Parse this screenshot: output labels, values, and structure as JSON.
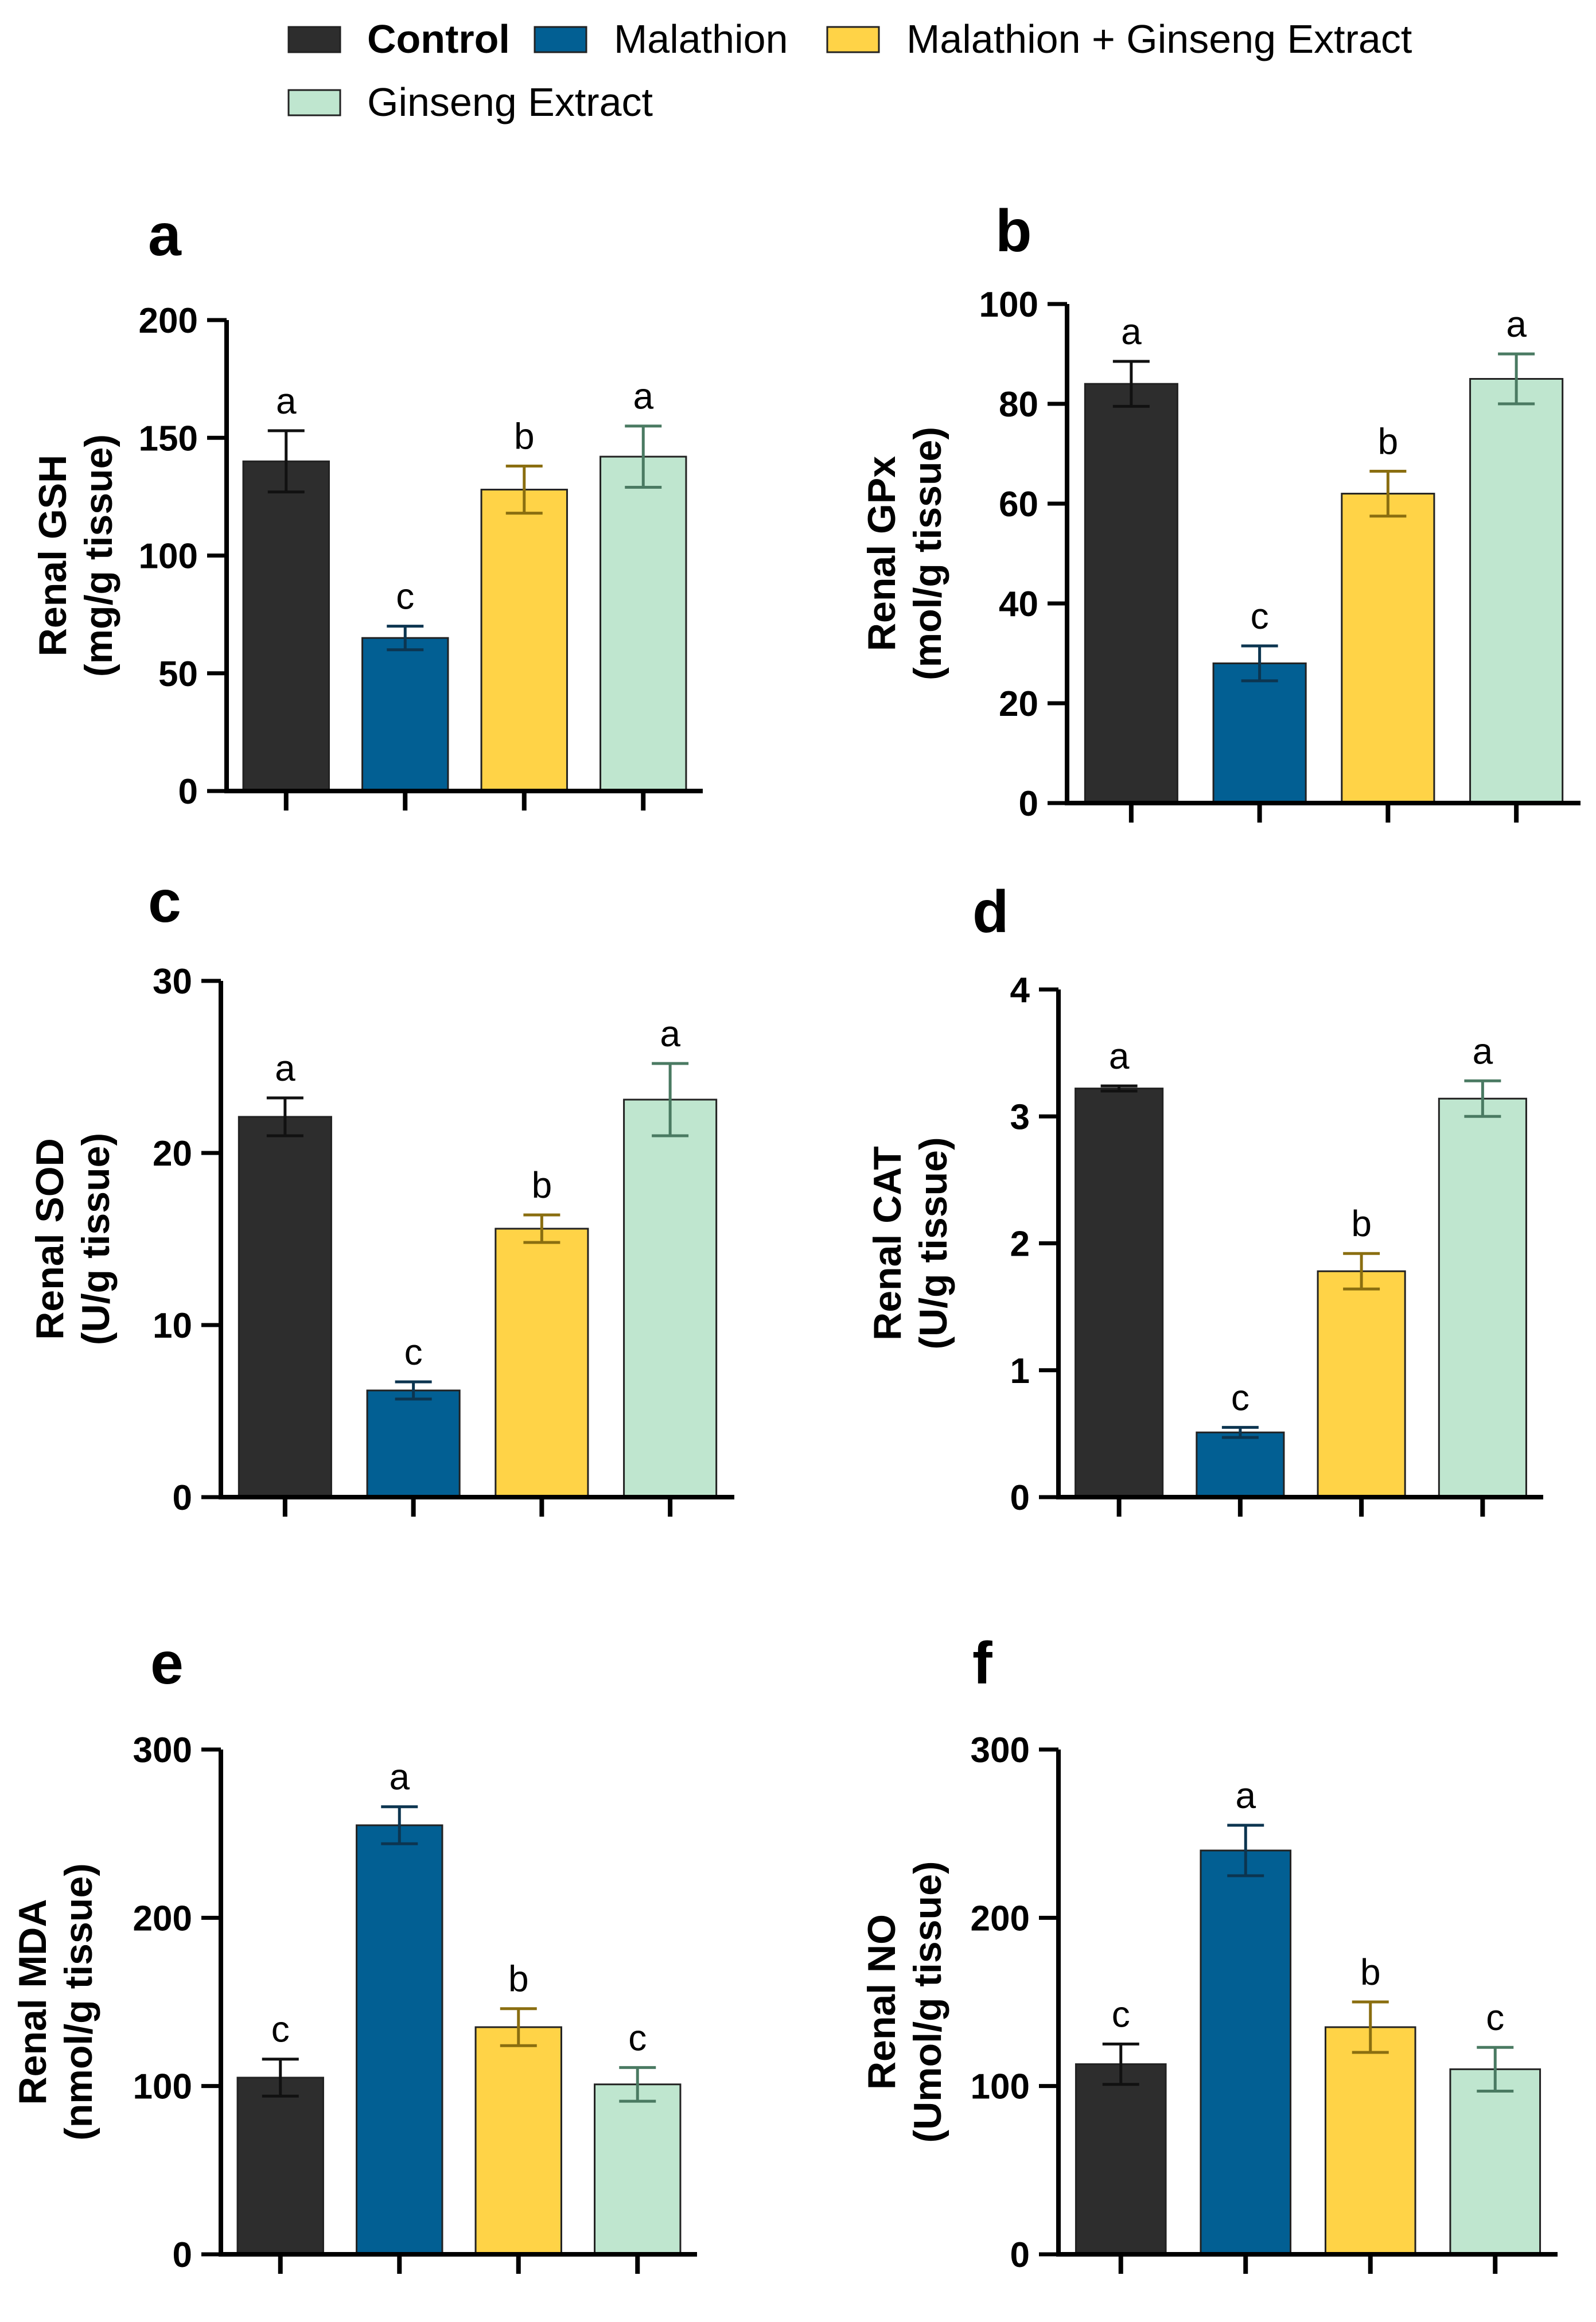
{
  "legend": [
    {
      "label": "Control",
      "color": "#2d2d2d",
      "bold": true
    },
    {
      "label": "Malathion",
      "color": "#025f93"
    },
    {
      "label": "Malathion + Ginseng Extract",
      "color": "#ffd347"
    },
    {
      "label": "Ginseng Extract",
      "color": "#bfe6cf"
    }
  ],
  "colors": {
    "control": "#2d2d2d",
    "malathion": "#025f93",
    "malathion_ginseng": "#ffd347",
    "ginseng": "#bfe6cf",
    "error_bars": [
      "#111111",
      "#0c3550",
      "#8a6e10",
      "#4a7a62"
    ]
  },
  "chart_data": [
    {
      "type": "bar",
      "panel": "a",
      "ylabel_line1": "Renal GSH",
      "ylabel_line2": "(mg/g tissue)",
      "ylim": [
        0,
        200
      ],
      "yticks": [
        0,
        50,
        100,
        150,
        200
      ],
      "values": [
        140,
        65,
        128,
        142
      ],
      "errors": [
        13,
        5,
        10,
        13
      ],
      "sig": [
        "a",
        "c",
        "b",
        "a"
      ]
    },
    {
      "type": "bar",
      "panel": "b",
      "ylabel_line1": "Renal GPx",
      "ylabel_line2": "(mol/g tissue)",
      "ylim": [
        0,
        100
      ],
      "yticks": [
        0,
        20,
        40,
        60,
        80,
        100
      ],
      "values": [
        84,
        28,
        62,
        85
      ],
      "errors": [
        4.5,
        3.5,
        4.5,
        5
      ],
      "sig": [
        "a",
        "c",
        "b",
        "a"
      ]
    },
    {
      "type": "bar",
      "panel": "c",
      "ylabel_line1": "Renal SOD",
      "ylabel_line2": "(U/g tissue)",
      "ylim": [
        0,
        30
      ],
      "yticks": [
        0,
        10,
        20,
        30
      ],
      "values": [
        22.1,
        6.2,
        15.6,
        23.1
      ],
      "errors": [
        1.1,
        0.5,
        0.8,
        2.1
      ],
      "sig": [
        "a",
        "c",
        "b",
        "a"
      ]
    },
    {
      "type": "bar",
      "panel": "d",
      "ylabel_line1": "Renal CAT",
      "ylabel_line2": "(U/g tissue)",
      "ylim": [
        0,
        4
      ],
      "yticks": [
        0,
        1,
        2,
        3,
        4
      ],
      "values": [
        3.22,
        0.51,
        1.78,
        3.14
      ],
      "errors": [
        0.02,
        0.04,
        0.14,
        0.14
      ],
      "sig": [
        "a",
        "c",
        "b",
        "a"
      ]
    },
    {
      "type": "bar",
      "panel": "e",
      "ylabel_line1": "Renal MDA",
      "ylabel_line2": "(nmol/g tissue)",
      "ylim": [
        0,
        300
      ],
      "yticks": [
        0,
        100,
        200,
        300
      ],
      "values": [
        105,
        255,
        135,
        101
      ],
      "errors": [
        11,
        11,
        11,
        10
      ],
      "sig": [
        "c",
        "a",
        "b",
        "c"
      ]
    },
    {
      "type": "bar",
      "panel": "f",
      "ylabel_line1": "Renal NO",
      "ylabel_line2": "(Umol/g tissue)",
      "ylim": [
        0,
        300
      ],
      "yticks": [
        0,
        100,
        200,
        300
      ],
      "values": [
        113,
        240,
        135,
        110
      ],
      "errors": [
        12,
        15,
        15,
        13
      ],
      "sig": [
        "c",
        "a",
        "b",
        "c"
      ]
    }
  ]
}
